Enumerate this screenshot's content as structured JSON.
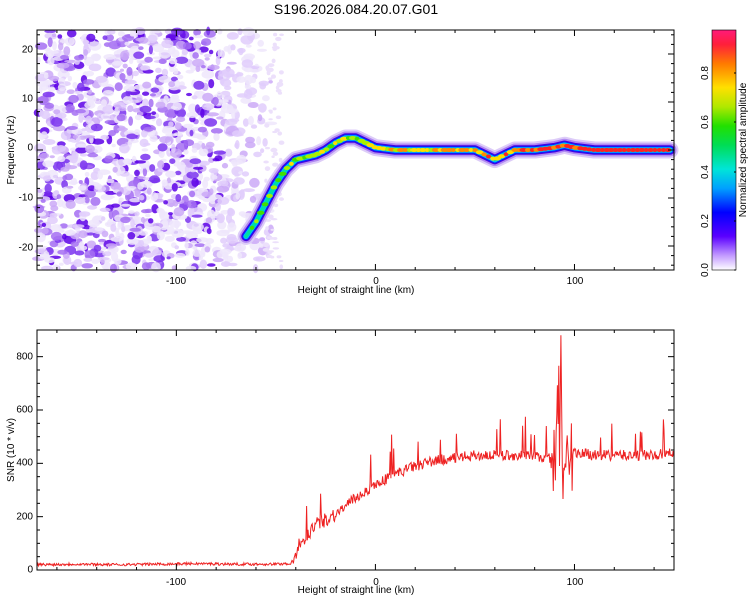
{
  "title": "S196.2026.084.20.07.G01",
  "chart_data": [
    {
      "type": "heatmap",
      "xlabel": "Height of straight line (km)",
      "ylabel": "Frequency (Hz)",
      "xlim": [
        -170,
        150
      ],
      "ylim": [
        -25,
        25
      ],
      "x_ticks": [
        "-100",
        "0",
        "100"
      ],
      "y_ticks": [
        "-20",
        "-10",
        "0",
        "10",
        "20"
      ],
      "colorbar": {
        "label": "Normalized spectral amplitude",
        "range": [
          0,
          1
        ],
        "ticks": [
          "0.0",
          "0.2",
          "0.4",
          "0.6",
          "0.8"
        ]
      },
      "ridge": {
        "x": [
          -65,
          -60,
          -55,
          -50,
          -45,
          -40,
          -35,
          -30,
          -25,
          -20,
          -15,
          -10,
          -5,
          0,
          10,
          20,
          30,
          40,
          50,
          55,
          60,
          65,
          70,
          80,
          90,
          95,
          100,
          110,
          120,
          130,
          140,
          148
        ],
        "freq": [
          -18,
          -15,
          -11,
          -7,
          -4,
          -2,
          -1.5,
          -1,
          0,
          1.5,
          2.5,
          2.5,
          1.5,
          0.5,
          0,
          0,
          0,
          0,
          0,
          -1,
          -2,
          -1,
          0,
          0,
          0.5,
          1,
          0.5,
          0,
          0,
          0,
          0,
          0
        ]
      }
    },
    {
      "type": "line",
      "xlabel": "Height of straight line (km)",
      "ylabel": "SNR (10 * v/v)",
      "xlim": [
        -170,
        150
      ],
      "ylim": [
        0,
        900
      ],
      "x_ticks": [
        "-100",
        "0",
        "100"
      ],
      "y_ticks": [
        "0",
        "200",
        "400",
        "600",
        "800"
      ],
      "series": [
        {
          "name": "SNR",
          "color": "#ee2222",
          "x": [
            -170,
            -150,
            -130,
            -110,
            -90,
            -70,
            -50,
            -42,
            -38,
            -30,
            -20,
            -10,
            0,
            10,
            20,
            30,
            40,
            50,
            60,
            70,
            80,
            85,
            90,
            93,
            95,
            100,
            110,
            120,
            130,
            140,
            150
          ],
          "values": [
            20,
            22,
            20,
            22,
            24,
            22,
            22,
            25,
            100,
            170,
            210,
            270,
            320,
            360,
            390,
            410,
            420,
            430,
            430,
            430,
            425,
            420,
            420,
            880,
            380,
            440,
            430,
            430,
            430,
            430,
            440
          ]
        }
      ]
    }
  ]
}
